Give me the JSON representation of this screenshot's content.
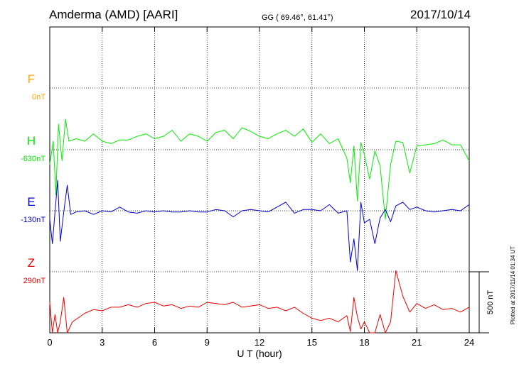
{
  "chart_data": {
    "type": "line",
    "title": "Amderma (AMD)  [AARI]",
    "coords": "GG ( 69.46°,  61.41°)",
    "date": "2017/10/14",
    "xlabel": "U T (hour)",
    "xlim": [
      0,
      24
    ],
    "x_ticks": [
      "0",
      "3",
      "6",
      "9",
      "12",
      "15",
      "18",
      "21",
      "24"
    ],
    "grid": true,
    "scale_label": "500 nT",
    "footer": "Plotted at 2017/11/14 01:34 UT",
    "colors": {
      "F": "#ffa500",
      "H": "#00ee00",
      "E": "#0000cc",
      "Z": "#ee0000"
    },
    "series": [
      {
        "name": "F",
        "baseline": "0nT",
        "x": [],
        "y": []
      },
      {
        "name": "H",
        "baseline": "-630nT",
        "x": [
          0,
          0.2,
          0.35,
          0.5,
          0.7,
          0.9,
          1.1,
          1.5,
          2,
          2.5,
          3,
          3.5,
          4,
          4.5,
          5,
          5.5,
          6,
          6.5,
          7,
          7.5,
          8,
          8.5,
          9,
          9.5,
          10,
          10.5,
          11,
          11.5,
          12,
          12.5,
          13,
          13.5,
          14,
          14.5,
          15,
          15.5,
          16,
          16.5,
          17,
          17.2,
          17.4,
          17.6,
          17.8,
          18,
          18.3,
          18.6,
          18.9,
          19.2,
          19.5,
          19.8,
          20.2,
          20.6,
          21,
          21.5,
          22,
          22.5,
          23,
          23.5,
          24
        ],
        "y": [
          -750,
          -560,
          -1000,
          -420,
          -720,
          -380,
          -560,
          -540,
          -560,
          -500,
          -560,
          -580,
          -550,
          -550,
          -520,
          -500,
          -540,
          -520,
          -470,
          -560,
          -500,
          -520,
          -560,
          -490,
          -470,
          -540,
          -450,
          -480,
          -520,
          -540,
          -500,
          -470,
          -520,
          -460,
          -570,
          -500,
          -580,
          -540,
          -700,
          -900,
          -600,
          -1050,
          -570,
          -670,
          -870,
          -640,
          -760,
          -1200,
          -750,
          -560,
          -570,
          -820,
          -600,
          -590,
          -580,
          -550,
          -590,
          -590,
          -720
        ]
      },
      {
        "name": "E",
        "baseline": "-130nT",
        "x": [
          0,
          0.15,
          0.3,
          0.45,
          0.6,
          0.8,
          1,
          1.2,
          1.5,
          2,
          2.5,
          3,
          3.5,
          4,
          4.5,
          5,
          5.5,
          6,
          6.5,
          7,
          7.5,
          8,
          8.5,
          9,
          9.5,
          10,
          10.5,
          11,
          11.5,
          12,
          12.5,
          13,
          13.5,
          14,
          14.5,
          15,
          15.5,
          16,
          16.5,
          17,
          17.2,
          17.4,
          17.6,
          17.8,
          18,
          18.3,
          18.6,
          18.9,
          19.2,
          19.5,
          19.8,
          20.2,
          20.6,
          21,
          21.5,
          22,
          22.5,
          23,
          23.5,
          24
        ],
        "y": [
          -200,
          -400,
          -140,
          120,
          -380,
          -140,
          80,
          -160,
          -140,
          -130,
          -160,
          -130,
          -140,
          -100,
          -140,
          -150,
          -130,
          -140,
          -130,
          -140,
          -140,
          -130,
          -140,
          -140,
          -120,
          -130,
          -180,
          -130,
          -120,
          -130,
          -140,
          -100,
          -60,
          -150,
          -120,
          -120,
          -130,
          -80,
          -150,
          -130,
          -550,
          -360,
          -620,
          -60,
          -230,
          -200,
          -400,
          -190,
          -120,
          -220,
          -90,
          -60,
          -120,
          -100,
          -130,
          -140,
          -130,
          -120,
          -130,
          -80
        ]
      },
      {
        "name": "Z",
        "baseline": "290nT",
        "x": [
          0,
          0.15,
          0.3,
          0.45,
          0.6,
          0.8,
          1,
          1.3,
          1.7,
          2,
          2.5,
          3,
          3.5,
          4,
          4.5,
          5,
          5.5,
          6,
          6.5,
          7,
          7.5,
          8,
          8.5,
          9,
          9.5,
          10,
          10.5,
          11,
          11.5,
          12,
          12.5,
          13,
          13.5,
          14,
          14.5,
          15,
          15.5,
          16,
          16.5,
          17,
          17.2,
          17.4,
          17.6,
          17.8,
          18,
          18.3,
          18.6,
          18.9,
          19.2,
          19.5,
          19.8,
          20.2,
          20.6,
          21,
          21.5,
          22,
          22.5,
          23,
          23.5,
          24
        ],
        "y": [
          40,
          -360,
          -60,
          -330,
          -120,
          80,
          -230,
          -120,
          -80,
          -50,
          -20,
          -30,
          0,
          0,
          20,
          0,
          30,
          40,
          10,
          20,
          -10,
          10,
          0,
          40,
          30,
          20,
          40,
          0,
          10,
          20,
          -10,
          0,
          -30,
          0,
          -50,
          -90,
          -110,
          -90,
          -120,
          -70,
          -200,
          80,
          -80,
          -180,
          -120,
          -250,
          -340,
          -60,
          -470,
          -120,
          300,
          90,
          -40,
          30,
          -10,
          20,
          -20,
          -10,
          -40,
          0
        ]
      }
    ]
  }
}
